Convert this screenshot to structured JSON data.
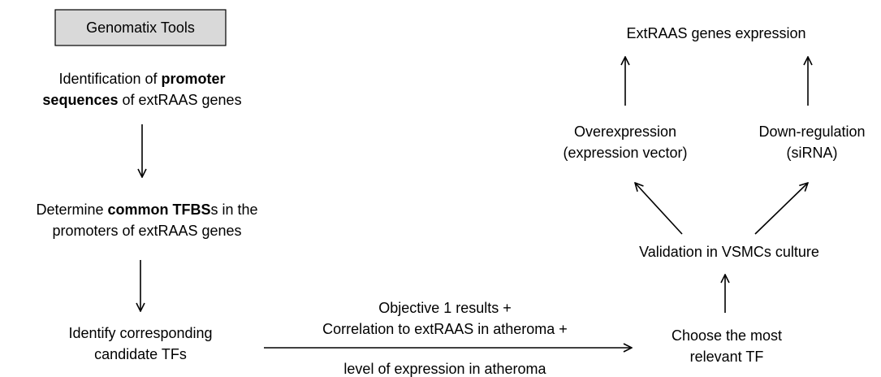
{
  "nodes": [
    {
      "lines": [
        [
          {
            "text": "Genomatix Tools"
          }
        ]
      ]
    },
    {
      "lines": [
        [
          {
            "text": "Identification of "
          },
          {
            "text": "promoter",
            "bold": true
          }
        ],
        [
          {
            "text": "sequences",
            "bold": true
          },
          {
            "text": " of extRAAS genes"
          }
        ]
      ]
    },
    {
      "lines": [
        [
          {
            "text": "Determine "
          },
          {
            "text": "common TFBS",
            "bold": true
          },
          {
            "text": "s in the"
          }
        ],
        [
          {
            "text": "promoters of extRAAS genes"
          }
        ]
      ]
    },
    {
      "lines": [
        [
          {
            "text": "Identify corresponding"
          }
        ],
        [
          {
            "text": "candidate TFs"
          }
        ]
      ]
    },
    {
      "lines": [
        [
          {
            "text": "Objective 1 results +"
          }
        ],
        [
          {
            "text": "Correlation to extRAAS in atheroma +"
          }
        ]
      ]
    },
    {
      "lines": [
        [
          {
            "text": "level of expression in atheroma"
          }
        ]
      ]
    },
    {
      "lines": [
        [
          {
            "text": "Choose the most"
          }
        ],
        [
          {
            "text": "relevant TF"
          }
        ]
      ]
    },
    {
      "lines": [
        [
          {
            "text": "Validation in VSMCs culture"
          }
        ]
      ]
    },
    {
      "lines": [
        [
          {
            "text": "Overexpression"
          }
        ],
        [
          {
            "text": "(expression vector)"
          }
        ]
      ]
    },
    {
      "lines": [
        [
          {
            "text": "Down-regulation"
          }
        ],
        [
          {
            "text": "(siRNA)"
          }
        ]
      ]
    },
    {
      "lines": [
        [
          {
            "text": "ExtRAAS genes expression"
          }
        ]
      ]
    }
  ]
}
